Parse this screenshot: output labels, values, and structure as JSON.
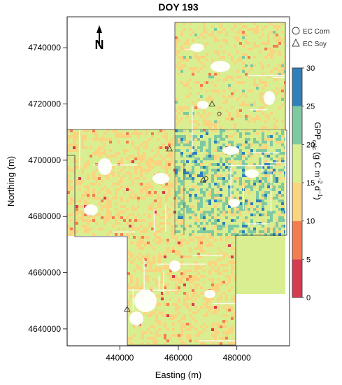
{
  "title": "DOY 193",
  "north_label": "N",
  "x_axis": {
    "label": "Easting (m)",
    "ticks": [
      "440000",
      "460000",
      "480000"
    ],
    "tick_values": [
      440000,
      460000,
      480000
    ],
    "range": [
      422000,
      498000
    ]
  },
  "y_axis": {
    "label": "Northing (m)",
    "ticks": [
      "4640000",
      "4660000",
      "4680000",
      "4700000",
      "4720000",
      "4740000"
    ],
    "tick_values": [
      4640000,
      4660000,
      4680000,
      4700000,
      4720000,
      4740000
    ],
    "range": [
      4634000,
      4751000
    ]
  },
  "legend": {
    "corn_label": "EC Corn",
    "soy_label": "EC Soy"
  },
  "colorbar": {
    "label_main": "GPP",
    "label_sub": "calc",
    "label_units_pre": " (g C m",
    "label_sup1": "−2",
    "label_mid": " d",
    "label_sup2": "−1",
    "label_end": ")",
    "ticks": [
      "0",
      "5",
      "10",
      "15",
      "20",
      "25",
      "30"
    ],
    "bins": [
      {
        "from": 0,
        "to": 5,
        "color": "#d73b4f"
      },
      {
        "from": 5,
        "to": 10,
        "color": "#f47d4f"
      },
      {
        "from": 10,
        "to": 15,
        "color": "#fbd47f"
      },
      {
        "from": 15,
        "to": 20,
        "color": "#d9ee91"
      },
      {
        "from": 20,
        "to": 25,
        "color": "#7ec9a0"
      },
      {
        "from": 25,
        "to": 30,
        "color": "#2e7fba"
      }
    ]
  },
  "sites": {
    "corn": [
      [
        474000,
        4716500
      ],
      [
        469500,
        4693500
      ]
    ],
    "soy": [
      [
        471500,
        4720000
      ],
      [
        457000,
        4704000
      ],
      [
        468500,
        4693000
      ],
      [
        442500,
        4647000
      ]
    ]
  }
}
